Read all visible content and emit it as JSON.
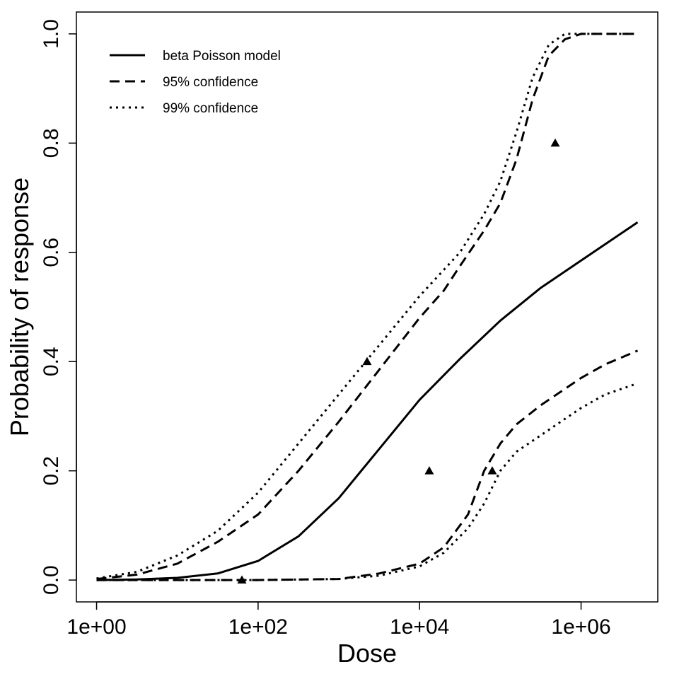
{
  "chart_data": {
    "type": "line",
    "title": "",
    "xlabel": "Dose",
    "ylabel": "Probability of response",
    "xscale": "log10",
    "xlim_log10": [
      -0.25,
      6.95
    ],
    "ylim": [
      -0.04,
      1.04
    ],
    "x_ticks": [
      {
        "log10": 0,
        "label": "1e+00"
      },
      {
        "log10": 2,
        "label": "1e+02"
      },
      {
        "log10": 4,
        "label": "1e+04"
      },
      {
        "log10": 6,
        "label": "1e+06"
      }
    ],
    "y_ticks": [
      {
        "value": 0.0,
        "label": "0.0"
      },
      {
        "value": 0.2,
        "label": "0.2"
      },
      {
        "value": 0.4,
        "label": "0.4"
      },
      {
        "value": 0.6,
        "label": "0.6"
      },
      {
        "value": 0.8,
        "label": "0.8"
      },
      {
        "value": 1.0,
        "label": "1.0"
      }
    ],
    "legend_position": "top-left",
    "series": [
      {
        "name": "beta Poisson model",
        "style": "solid",
        "x_log10": [
          0,
          0.5,
          1.0,
          1.5,
          2.0,
          2.5,
          3.0,
          3.5,
          4.0,
          4.5,
          5.0,
          5.5,
          6.0,
          6.7
        ],
        "y": [
          0.0,
          0.001,
          0.004,
          0.012,
          0.035,
          0.08,
          0.15,
          0.24,
          0.33,
          0.405,
          0.475,
          0.535,
          0.585,
          0.655
        ]
      },
      {
        "name": "95% confidence",
        "style": "dashed",
        "x_log10": [
          0,
          0.5,
          1.0,
          1.5,
          2.0,
          2.5,
          3.0,
          3.5,
          4.0,
          4.3,
          4.5,
          4.8,
          5.0,
          5.2,
          5.4,
          5.6,
          5.8,
          6.0,
          6.3,
          6.7
        ],
        "y": [
          0.002,
          0.01,
          0.03,
          0.07,
          0.12,
          0.2,
          0.29,
          0.385,
          0.48,
          0.53,
          0.575,
          0.64,
          0.69,
          0.77,
          0.88,
          0.96,
          0.99,
          1.0,
          1.0,
          1.0
        ]
      },
      {
        "name": "95% confidence lower",
        "style": "dashed",
        "x_log10": [
          0,
          1.0,
          2.0,
          3.0,
          3.5,
          4.0,
          4.3,
          4.6,
          4.8,
          5.0,
          5.2,
          5.5,
          5.8,
          6.0,
          6.3,
          6.7
        ],
        "y": [
          0.0,
          0.0,
          0.0,
          0.002,
          0.012,
          0.03,
          0.06,
          0.12,
          0.2,
          0.25,
          0.285,
          0.32,
          0.35,
          0.37,
          0.395,
          0.42
        ]
      },
      {
        "name": "99% confidence",
        "style": "dotted",
        "x_log10": [
          0,
          0.5,
          1.0,
          1.5,
          2.0,
          2.5,
          3.0,
          3.5,
          4.0,
          4.5,
          4.8,
          5.0,
          5.2,
          5.4,
          5.6,
          5.8,
          6.0,
          6.3,
          6.7
        ],
        "y": [
          0.003,
          0.015,
          0.045,
          0.09,
          0.16,
          0.25,
          0.34,
          0.43,
          0.52,
          0.6,
          0.67,
          0.73,
          0.82,
          0.92,
          0.98,
          1.0,
          1.0,
          1.0,
          1.0
        ]
      },
      {
        "name": "99% confidence lower",
        "style": "dotted",
        "x_log10": [
          0,
          1.0,
          2.0,
          3.0,
          3.5,
          4.0,
          4.3,
          4.6,
          4.8,
          5.0,
          5.2,
          5.5,
          5.8,
          6.0,
          6.3,
          6.7
        ],
        "y": [
          0.0,
          0.0,
          0.0,
          0.002,
          0.008,
          0.025,
          0.05,
          0.095,
          0.14,
          0.2,
          0.235,
          0.265,
          0.295,
          0.315,
          0.34,
          0.36
        ]
      }
    ],
    "points": {
      "name": "observed",
      "marker": "triangle",
      "x_log10": [
        1.8,
        3.35,
        4.12,
        4.9,
        5.68
      ],
      "y": [
        0.0,
        0.4,
        0.2,
        0.2,
        0.8
      ]
    },
    "legend": [
      {
        "label": "beta Poisson model",
        "style": "solid"
      },
      {
        "label": "95% confidence",
        "style": "dashed"
      },
      {
        "label": "99% confidence",
        "style": "dotted"
      }
    ]
  }
}
